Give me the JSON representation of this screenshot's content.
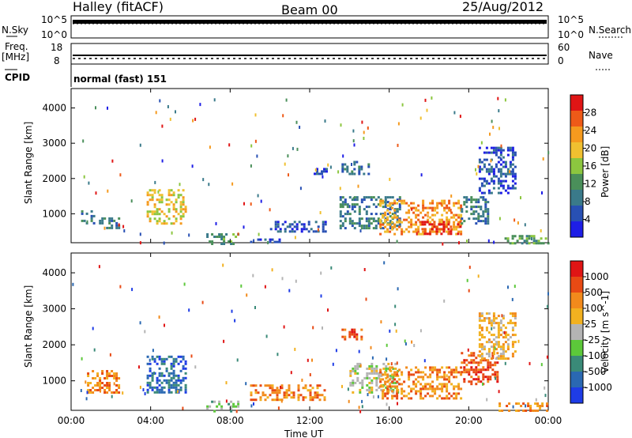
{
  "header": {
    "station": "Halley (fitACF)",
    "beam": "Beam 00",
    "date": "25/Aug/2012"
  },
  "aux_panels": {
    "nsky_label": "N.Sky",
    "nsky_ticks": [
      "10^5",
      "10^0"
    ],
    "nsearch_label": "N.Search",
    "freq_label": "Freq.",
    "freq_unit": "[MHz]",
    "freq_ticks": [
      "18",
      "8"
    ],
    "nave_label": "Nave",
    "nave_ticks": [
      "60",
      "0"
    ],
    "cpid_label": "CPID",
    "cpid_value": "normal (fast) 151"
  },
  "chart_data": [
    {
      "type": "heatmap",
      "title": "",
      "xlabel": "",
      "ylabel": "Slant Range [km]",
      "colorbar_label": "Power [dB]",
      "colorbar_ticks": [
        "4",
        "8",
        "12",
        "16",
        "20",
        "24",
        "28"
      ],
      "x_range_hours": [
        0,
        24
      ],
      "y_range_km": [
        180,
        4550
      ],
      "yticks": [
        "1000",
        "2000",
        "3000",
        "4000"
      ],
      "palette": [
        "#1e1ee6",
        "#2850b4",
        "#3a7a8a",
        "#4a8f5a",
        "#8cc63f",
        "#f0c030",
        "#f59a1e",
        "#ee5a18",
        "#e01515"
      ],
      "echo_regions": [
        {
          "t_start": 0.5,
          "t_end": 1.2,
          "r_min": 700,
          "r_max": 1100,
          "level": 2
        },
        {
          "t_start": 1.4,
          "t_end": 2.4,
          "r_min": 600,
          "r_max": 900,
          "level": 2
        },
        {
          "t_start": 3.8,
          "t_end": 5.8,
          "r_min": 700,
          "r_max": 1700,
          "level": 5
        },
        {
          "t_start": 6.8,
          "t_end": 8.4,
          "r_min": 180,
          "r_max": 450,
          "level": 3
        },
        {
          "t_start": 9.0,
          "t_end": 10.5,
          "r_min": 180,
          "r_max": 300,
          "level": 1
        },
        {
          "t_start": 10.0,
          "t_end": 12.8,
          "r_min": 500,
          "r_max": 800,
          "level": 1
        },
        {
          "t_start": 12.2,
          "t_end": 13.0,
          "r_min": 2100,
          "r_max": 2300,
          "level": 1
        },
        {
          "t_start": 13.6,
          "t_end": 15.0,
          "r_min": 2100,
          "r_max": 2500,
          "level": 2
        },
        {
          "t_start": 13.5,
          "t_end": 16.5,
          "r_min": 600,
          "r_max": 1500,
          "level": 2
        },
        {
          "t_start": 15.5,
          "t_end": 19.6,
          "r_min": 400,
          "r_max": 1400,
          "level": 6
        },
        {
          "t_start": 17.5,
          "t_end": 19.6,
          "r_min": 400,
          "r_max": 800,
          "level": 8
        },
        {
          "t_start": 19.6,
          "t_end": 21.0,
          "r_min": 700,
          "r_max": 1500,
          "level": 2
        },
        {
          "t_start": 20.5,
          "t_end": 22.3,
          "r_min": 1600,
          "r_max": 2900,
          "level": 1
        },
        {
          "t_start": 21.8,
          "t_end": 24.0,
          "r_min": 180,
          "r_max": 400,
          "level": 3
        }
      ]
    },
    {
      "type": "heatmap",
      "title": "",
      "xlabel": "Time UT",
      "ylabel": "Slant Range [km]",
      "colorbar_label": "Velocity  [m s^-1]",
      "colorbar_ticks": [
        "1000",
        "500",
        "100",
        "25",
        "-25",
        "-100",
        "-500",
        "-1000"
      ],
      "x_range_hours": [
        0,
        24
      ],
      "y_range_km": [
        180,
        4550
      ],
      "yticks": [
        "1000",
        "2000",
        "3000",
        "4000"
      ],
      "xticks": [
        "00:00",
        "04:00",
        "08:00",
        "12:00",
        "16:00",
        "20:00",
        "00:00"
      ],
      "palette": [
        "#1e3ce6",
        "#2a68b2",
        "#3a8a78",
        "#5cc83a",
        "#b4b4b4",
        "#f2b120",
        "#f28a1c",
        "#e84a14",
        "#e01515"
      ],
      "echo_regions": [
        {
          "t_start": 0.8,
          "t_end": 2.4,
          "r_min": 700,
          "r_max": 1300,
          "level": 6
        },
        {
          "t_start": 3.8,
          "t_end": 5.8,
          "r_min": 700,
          "r_max": 1700,
          "level": 1
        },
        {
          "t_start": 6.8,
          "t_end": 8.4,
          "r_min": 180,
          "r_max": 450,
          "level": 3
        },
        {
          "t_start": 9.0,
          "t_end": 12.8,
          "r_min": 500,
          "r_max": 900,
          "level": 6
        },
        {
          "t_start": 13.6,
          "t_end": 14.6,
          "r_min": 2150,
          "r_max": 2450,
          "level": 7
        },
        {
          "t_start": 14.0,
          "t_end": 16.5,
          "r_min": 700,
          "r_max": 1500,
          "level": 4
        },
        {
          "t_start": 15.5,
          "t_end": 19.6,
          "r_min": 500,
          "r_max": 1400,
          "level": 6
        },
        {
          "t_start": 19.6,
          "t_end": 21.5,
          "r_min": 900,
          "r_max": 1800,
          "level": 7
        },
        {
          "t_start": 20.5,
          "t_end": 22.3,
          "r_min": 1600,
          "r_max": 2900,
          "level": 5
        },
        {
          "t_start": 21.5,
          "t_end": 24.0,
          "r_min": 180,
          "r_max": 400,
          "level": 6
        }
      ]
    }
  ]
}
